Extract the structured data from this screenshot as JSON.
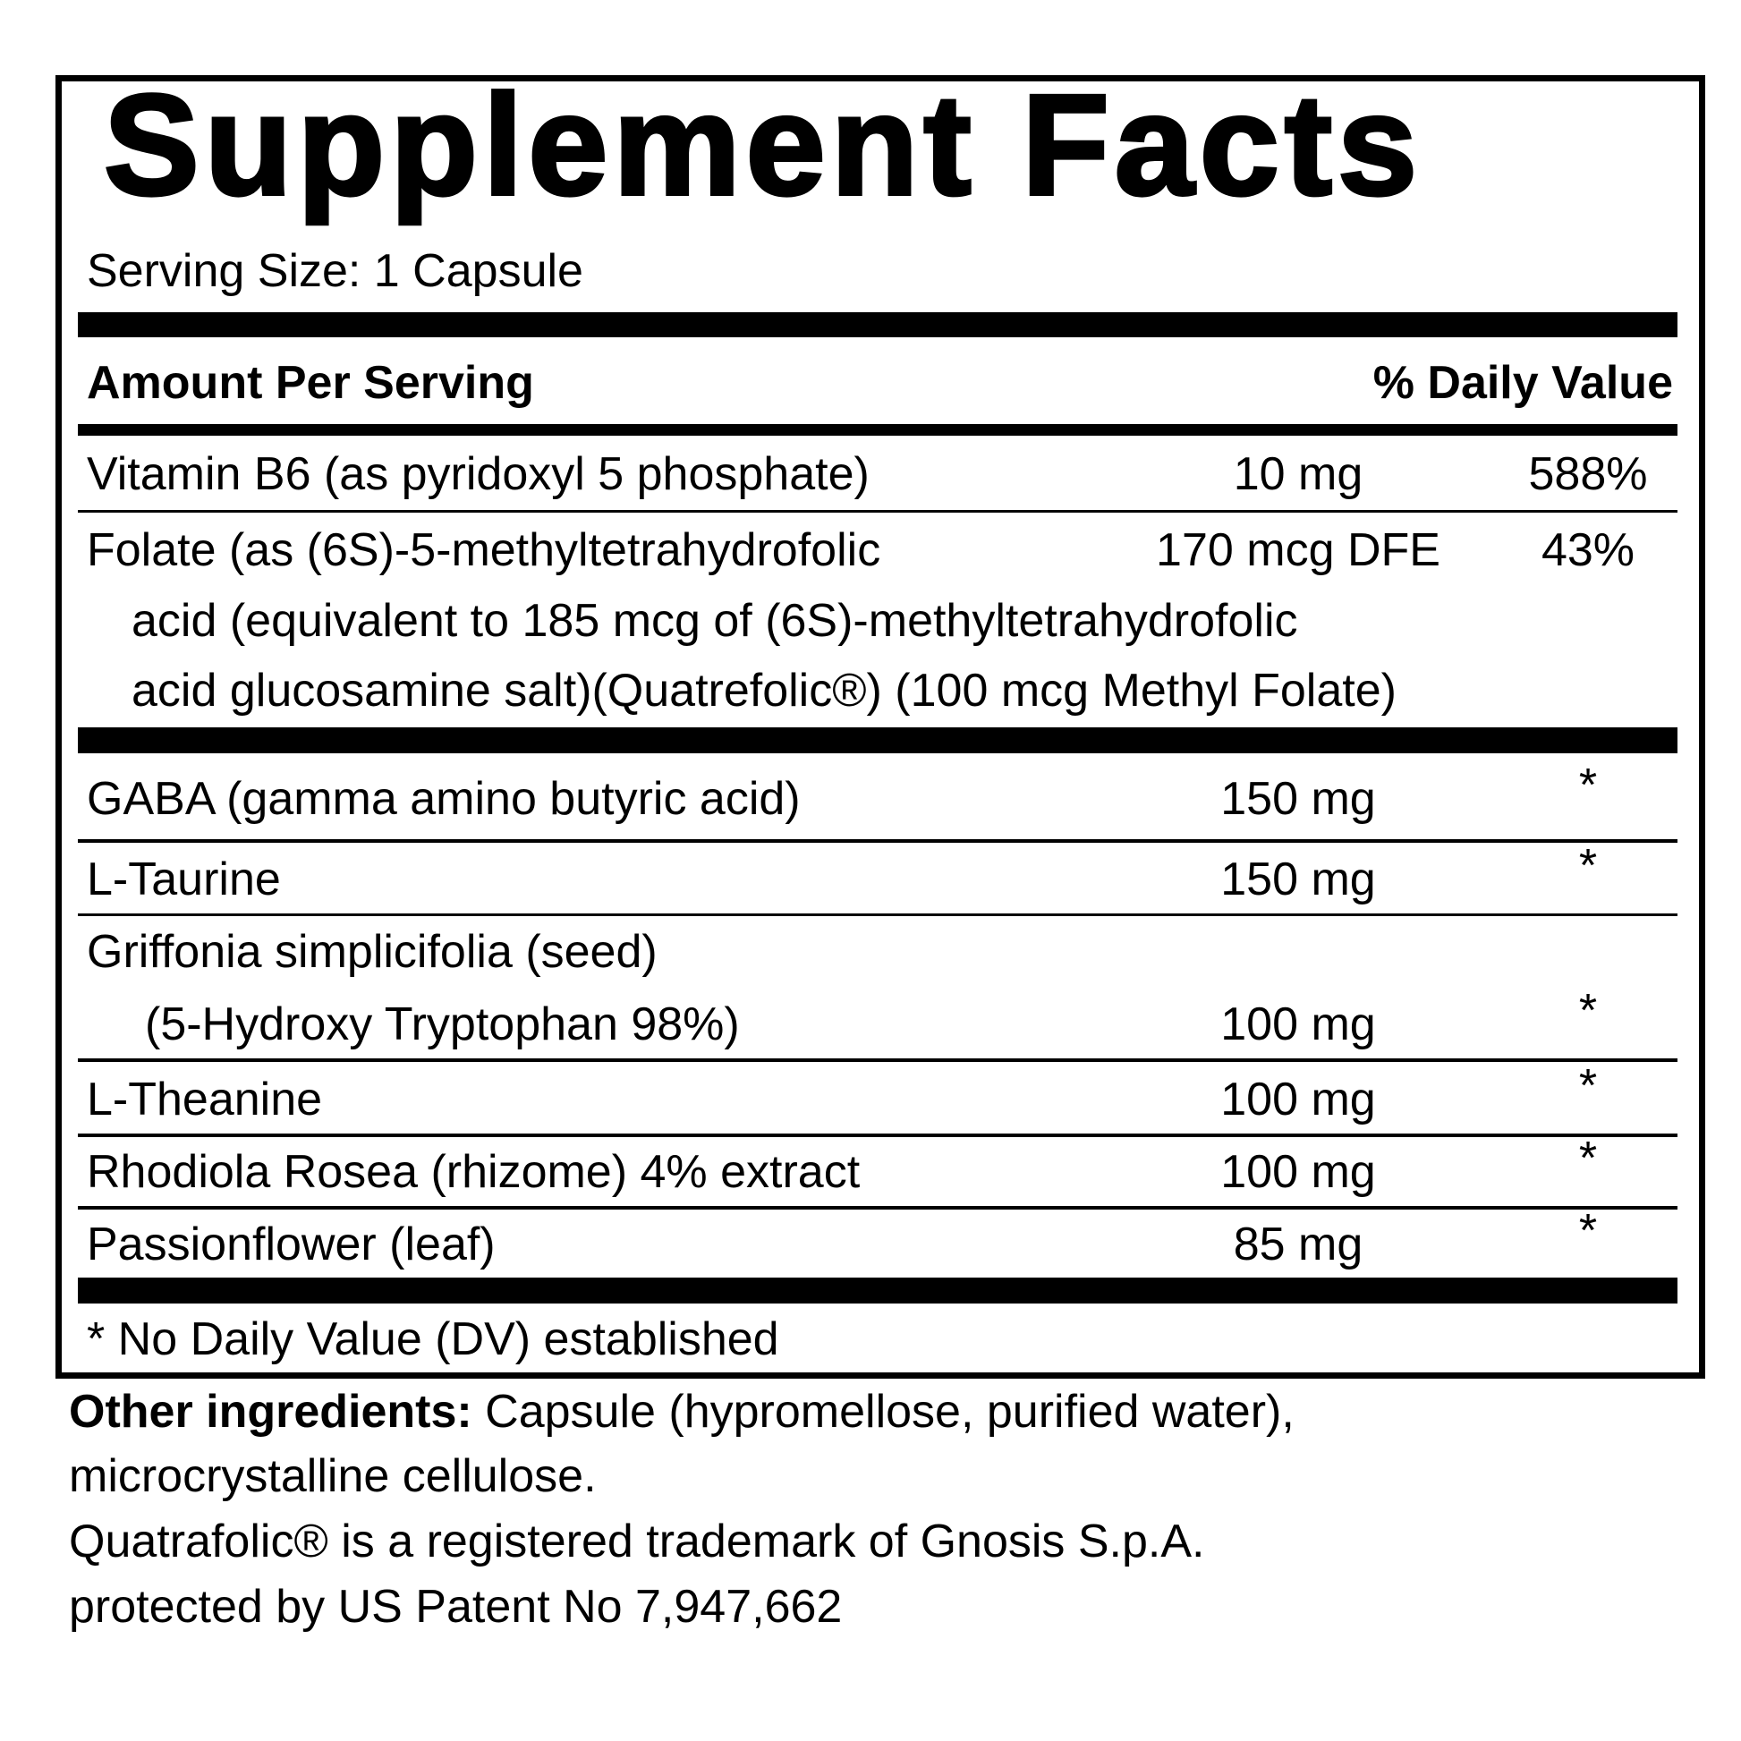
{
  "title": "Supplement Facts",
  "serving_size": "Serving Size:  1 Capsule",
  "header": {
    "amount": "Amount Per Serving",
    "dv": "% Daily Value"
  },
  "rows": [
    {
      "name": "Vitamin B6 (as pyridoxyl 5 phosphate)",
      "amount": "10 mg",
      "dv": "588%"
    },
    {
      "name": "Folate (as (6S)-5-methyltetrahydrofolic",
      "name2": "acid (equivalent to 185 mcg of (6S)-methyltetrahydrofolic",
      "name3": "acid glucosamine salt)(Quatrefolic®)  (100 mcg Methyl Folate)",
      "amount": "170 mcg DFE",
      "dv": "43%"
    },
    {
      "name": "GABA (gamma amino butyric acid)",
      "amount": "150 mg",
      "dv": "*"
    },
    {
      "name": "L-Taurine",
      "amount": "150 mg",
      "dv": "*"
    },
    {
      "name": "Griffonia simplicifolia (seed)",
      "name2": "(5-Hydroxy Tryptophan 98%)",
      "amount": "100 mg",
      "dv": "*"
    },
    {
      "name": "L-Theanine",
      "amount": "100 mg",
      "dv": "*"
    },
    {
      "name": "Rhodiola Rosea (rhizome) 4% extract",
      "amount": "100 mg",
      "dv": "*"
    },
    {
      "name": "Passionflower (leaf)",
      "amount": "85 mg",
      "dv": "*"
    }
  ],
  "footnote": "* No Daily Value (DV) established",
  "other": {
    "label": "Other ingredients:",
    "line1": " Capsule (hypromellose, purified water),",
    "line2": "microcrystalline cellulose.",
    "line3": "Quatrafolic®  is a registered trademark of  Gnosis S.p.A.",
    "line4": "protected by US Patent No 7,947,662"
  }
}
